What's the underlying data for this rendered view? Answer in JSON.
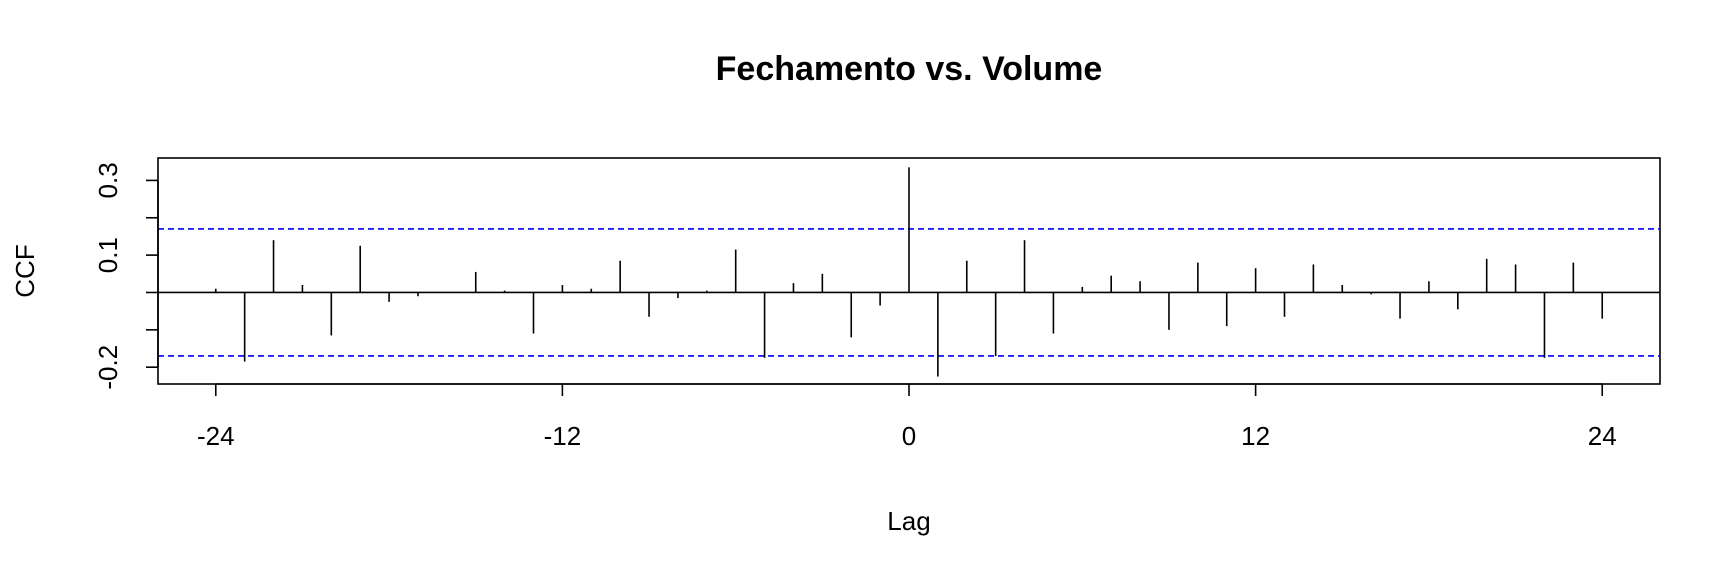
{
  "chart_data": {
    "type": "bar",
    "title": "Fechamento vs. Volume",
    "xlabel": "Lag",
    "ylabel": "CCF",
    "xlim": [
      -26,
      26
    ],
    "ylim": [
      -0.245,
      0.36
    ],
    "x_ticks": [
      -24,
      -12,
      0,
      12,
      24
    ],
    "y_ticks": [
      -0.2,
      0.1,
      0.3
    ],
    "y_tick_labels": [
      "-0.2",
      "0.1",
      "0.3"
    ],
    "y_minor_ticks": [
      -0.1,
      0.0,
      0.2
    ],
    "confidence_bounds": [
      0.17,
      -0.17
    ],
    "bound_color": "#0000ff",
    "bar_color": "#000000",
    "grid": false,
    "legend": "none",
    "x": [
      -24,
      -23,
      -22,
      -21,
      -20,
      -19,
      -18,
      -17,
      -16,
      -15,
      -14,
      -13,
      -12,
      -11,
      -10,
      -9,
      -8,
      -7,
      -6,
      -5,
      -4,
      -3,
      -2,
      -1,
      0,
      1,
      2,
      3,
      4,
      5,
      6,
      7,
      8,
      9,
      10,
      11,
      12,
      13,
      14,
      15,
      16,
      17,
      18,
      19,
      20,
      21,
      22,
      23,
      24
    ],
    "values": [
      0.01,
      -0.185,
      0.14,
      0.02,
      -0.115,
      0.125,
      -0.025,
      -0.01,
      0.0,
      0.055,
      0.005,
      -0.11,
      0.02,
      0.01,
      0.085,
      -0.065,
      -0.015,
      0.005,
      0.115,
      -0.175,
      0.025,
      0.05,
      -0.12,
      -0.035,
      0.335,
      -0.225,
      0.085,
      -0.17,
      0.14,
      -0.11,
      0.015,
      0.045,
      0.03,
      -0.1,
      0.08,
      -0.09,
      0.065,
      -0.065,
      0.075,
      0.02,
      -0.005,
      -0.07,
      0.03,
      -0.045,
      0.09,
      0.075,
      -0.175,
      0.08,
      -0.07
    ]
  }
}
